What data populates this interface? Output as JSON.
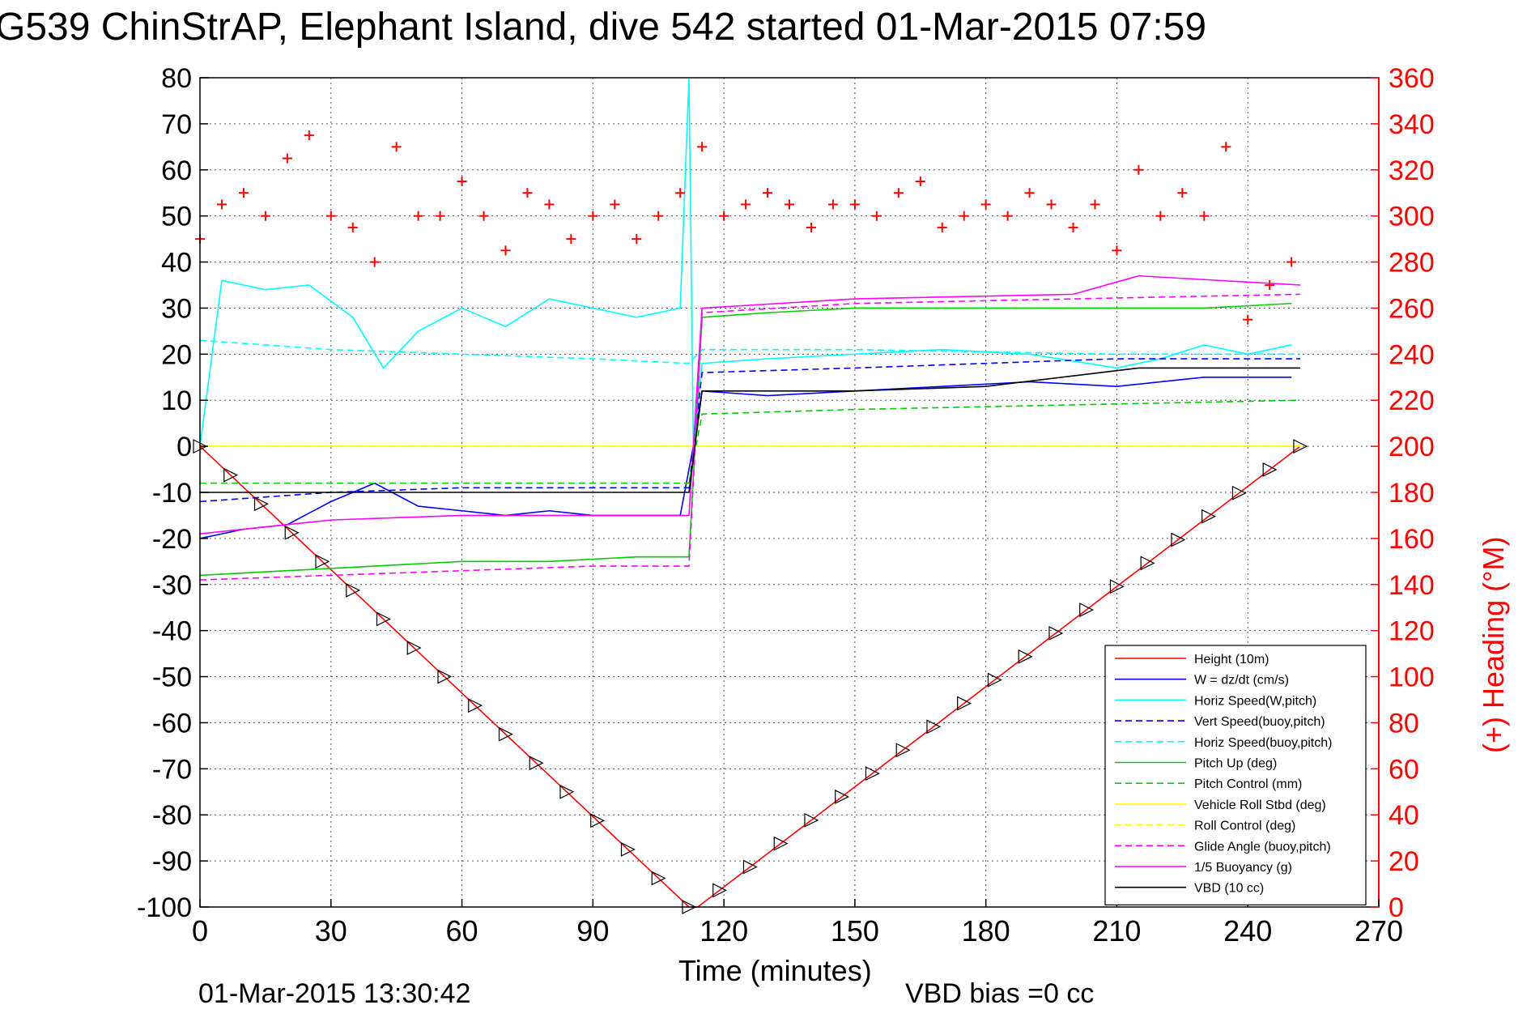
{
  "chart_data": {
    "type": "line",
    "title": "G539 ChinStrAP, Elephant Island, dive 542 started 01-Mar-2015 07:59",
    "xlabel": "Time (minutes)",
    "ylabel": "",
    "ylabel_right": "(+) Heading (°M)",
    "xlim": [
      0,
      270
    ],
    "ylim": [
      -100,
      80
    ],
    "ylim_right": [
      0,
      360
    ],
    "x_ticks": [
      0,
      30,
      60,
      90,
      120,
      150,
      180,
      210,
      240,
      270
    ],
    "y_ticks": [
      80,
      70,
      60,
      50,
      40,
      30,
      20,
      10,
      0,
      -10,
      -20,
      -30,
      -40,
      -50,
      -60,
      -70,
      -80,
      -90,
      -100
    ],
    "y_right_ticks": [
      360,
      340,
      320,
      300,
      280,
      260,
      240,
      220,
      200,
      180,
      160,
      140,
      120,
      100,
      80,
      60,
      40,
      20,
      0
    ],
    "grid": true,
    "legend_position": "bottom-right",
    "footer_left": "01-Mar-2015 13:30:42",
    "footer_right": "VBD bias =0 cc",
    "series": [
      {
        "name": "Height (10m)",
        "color": "#ff0000",
        "style": "solid",
        "x": [
          0,
          112,
          114,
          252
        ],
        "y": [
          0,
          -100,
          -100,
          0
        ]
      },
      {
        "name": "W = dz/dt (cm/s)",
        "color": "#0000ff",
        "style": "solid",
        "x": [
          0,
          10,
          20,
          30,
          40,
          50,
          60,
          70,
          80,
          90,
          100,
          110,
          113,
          115,
          130,
          150,
          170,
          190,
          210,
          230,
          250
        ],
        "y": [
          -20,
          -18,
          -17,
          -12,
          -8,
          -13,
          -14,
          -15,
          -14,
          -15,
          -15,
          -15,
          0,
          12,
          11,
          12,
          13,
          14,
          13,
          15,
          15
        ]
      },
      {
        "name": "Horiz Speed(W,pitch)",
        "color": "#00ffff",
        "style": "solid",
        "x": [
          0,
          5,
          15,
          25,
          35,
          42,
          50,
          60,
          70,
          80,
          90,
          100,
          110,
          112,
          113,
          115,
          130,
          150,
          170,
          190,
          210,
          220,
          230,
          240,
          250
        ],
        "y": [
          0,
          36,
          34,
          35,
          28,
          17,
          25,
          30,
          26,
          32,
          30,
          28,
          30,
          80,
          0,
          18,
          19,
          20,
          21,
          20,
          17,
          19,
          22,
          20,
          22
        ]
      },
      {
        "name": "Vert Speed(buoy,pitch)",
        "color": "#0000ff",
        "style": "dashed",
        "x": [
          0,
          30,
          60,
          90,
          112,
          115,
          150,
          210,
          252
        ],
        "y": [
          -12,
          -10,
          -9,
          -9,
          -9,
          16,
          17,
          19,
          19
        ]
      },
      {
        "name": "Horiz Speed(buoy,pitch)",
        "color": "#00ffff",
        "style": "dashed",
        "x": [
          0,
          30,
          60,
          90,
          112,
          115,
          150,
          210,
          252
        ],
        "y": [
          23,
          21,
          20,
          19,
          18,
          21,
          21,
          20,
          20
        ]
      },
      {
        "name": "Pitch Up (deg)",
        "color": "#00cc00",
        "style": "solid",
        "x": [
          0,
          20,
          40,
          60,
          80,
          100,
          112,
          115,
          130,
          150,
          170,
          190,
          210,
          230,
          250
        ],
        "y": [
          -28,
          -27,
          -26,
          -25,
          -25,
          -24,
          -24,
          28,
          29,
          30,
          30,
          30,
          30,
          30,
          31
        ]
      },
      {
        "name": "Pitch Control (mm)",
        "color": "#00cc00",
        "style": "dashed",
        "x": [
          0,
          112,
          115,
          150,
          200,
          252
        ],
        "y": [
          -8,
          -8,
          7,
          8,
          9,
          10
        ]
      },
      {
        "name": "Vehicle Roll Stbd (deg)",
        "color": "#ffff00",
        "style": "solid",
        "x": [
          0,
          30,
          60,
          90,
          112,
          140,
          180,
          220,
          252
        ],
        "y": [
          0,
          0,
          0,
          0,
          0,
          0,
          0,
          0,
          0
        ]
      },
      {
        "name": "Roll Control (deg)",
        "color": "#ffff00",
        "style": "dashed",
        "x": [
          0,
          252
        ],
        "y": [
          0,
          0
        ]
      },
      {
        "name": "Glide Angle (buoy,pitch)",
        "color": "#ff00ff",
        "style": "dashed",
        "x": [
          0,
          30,
          60,
          90,
          112,
          115,
          150,
          200,
          252
        ],
        "y": [
          -29,
          -28,
          -27,
          -26,
          -26,
          29,
          31,
          32,
          33
        ]
      },
      {
        "name": "1/5 Buoyancy (g)",
        "color": "#ff00ff",
        "style": "solid",
        "x": [
          0,
          30,
          60,
          90,
          112,
          115,
          150,
          200,
          215,
          252
        ],
        "y": [
          -19,
          -16,
          -15,
          -15,
          -15,
          30,
          32,
          33,
          37,
          35
        ]
      },
      {
        "name": "VBD (10 cc)",
        "color": "#000000",
        "style": "solid",
        "x": [
          0,
          30,
          60,
          90,
          112,
          115,
          150,
          180,
          215,
          252
        ],
        "y": [
          -10,
          -10,
          -10,
          -10,
          -10,
          12,
          12,
          13,
          17,
          17
        ]
      },
      {
        "name": "(+) Heading",
        "color": "#ff0000",
        "style": "markers",
        "axis": "right",
        "x": [
          0,
          5,
          10,
          15,
          20,
          25,
          30,
          35,
          40,
          45,
          50,
          55,
          60,
          65,
          70,
          75,
          80,
          85,
          90,
          95,
          100,
          105,
          110,
          115,
          120,
          125,
          130,
          135,
          140,
          145,
          150,
          155,
          160,
          165,
          170,
          175,
          180,
          185,
          190,
          195,
          200,
          205,
          210,
          215,
          220,
          225,
          230,
          235,
          240,
          245,
          250
        ],
        "y": [
          290,
          305,
          310,
          300,
          325,
          335,
          300,
          295,
          280,
          330,
          300,
          300,
          315,
          300,
          285,
          310,
          305,
          290,
          300,
          305,
          290,
          300,
          310,
          330,
          300,
          305,
          310,
          305,
          295,
          305,
          305,
          300,
          310,
          315,
          295,
          300,
          305,
          300,
          310,
          305,
          295,
          305,
          285,
          320,
          300,
          310,
          300,
          330,
          255,
          270,
          280
        ]
      }
    ]
  }
}
